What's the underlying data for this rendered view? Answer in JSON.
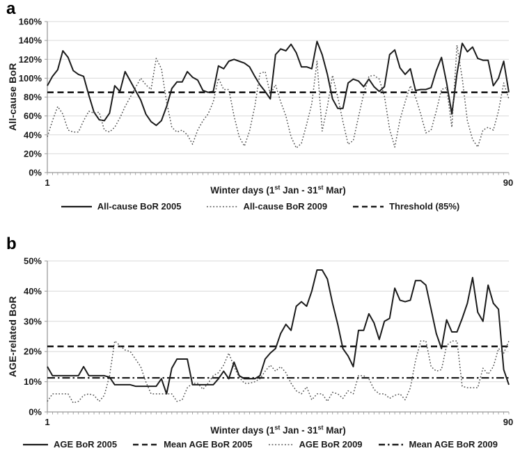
{
  "panels": [
    {
      "letter": "a",
      "ylabel": "All-cause BoR",
      "xlabel_parts": {
        "pre": "Winter days (1",
        "sup1": "st",
        "mid": " Jan - 31",
        "sup2": "st",
        "post": " Mar)"
      }
    },
    {
      "letter": "b",
      "ylabel": "AGE-related BoR",
      "xlabel_parts": {
        "pre": "Winter days (1",
        "sup1": "st",
        "mid": " Jan - 31",
        "sup2": "st",
        "post": " Mar)"
      }
    }
  ],
  "colors": {
    "line": "#1a1a1a",
    "dotted_line": "#4d4d4d",
    "gridline": "#d9d9d9",
    "axis": "#9a9a9a"
  },
  "chart_data": [
    {
      "type": "line",
      "title": "",
      "xlabel": "Winter days (1st Jan - 31st Mar)",
      "ylabel": "All-cause BoR",
      "x_range": [
        1,
        90
      ],
      "ylim": [
        0,
        160
      ],
      "grid": true,
      "legend_position": "bottom",
      "yticks": [
        "0%",
        "20%",
        "40%",
        "60%",
        "80%",
        "100%",
        "120%",
        "140%",
        "160%"
      ],
      "xticks": [
        "1",
        "90"
      ],
      "series": [
        {
          "name": "All-cause BoR 2005",
          "style": "solid",
          "values": [
            92,
            102,
            109,
            129,
            122,
            108,
            104,
            102,
            82,
            64,
            56,
            55,
            63,
            92,
            86,
            107,
            97,
            87,
            77,
            62,
            54,
            50,
            55,
            70,
            89,
            96,
            96,
            107,
            101,
            98,
            87,
            85,
            86,
            113,
            110,
            118,
            120,
            118,
            116,
            112,
            102,
            93,
            86,
            78,
            125,
            131,
            129,
            136,
            127,
            112,
            112,
            110,
            139,
            125,
            104,
            78,
            68,
            68,
            95,
            99,
            97,
            91,
            99,
            91,
            86,
            91,
            125,
            130,
            111,
            104,
            110,
            87,
            88,
            88,
            90,
            108,
            122,
            95,
            62,
            105,
            137,
            128,
            133,
            121,
            119,
            119,
            92,
            100,
            118,
            85
          ]
        },
        {
          "name": "All-cause BoR 2009",
          "style": "dotted",
          "values": [
            38,
            55,
            70,
            62,
            45,
            43,
            43,
            55,
            65,
            63,
            64,
            45,
            43,
            48,
            58,
            70,
            80,
            90,
            100,
            93,
            88,
            121,
            110,
            75,
            48,
            43,
            45,
            40,
            30,
            45,
            55,
            62,
            75,
            100,
            88,
            88,
            60,
            38,
            28,
            44,
            70,
            105,
            107,
            83,
            93,
            75,
            60,
            38,
            26,
            31,
            51,
            73,
            118,
            44,
            70,
            103,
            80,
            54,
            30,
            34,
            59,
            83,
            102,
            103,
            99,
            81,
            46,
            27,
            56,
            75,
            92,
            80,
            62,
            42,
            45,
            65,
            88,
            90,
            48,
            135,
            100,
            55,
            35,
            27,
            45,
            48,
            45,
            65,
            95,
            78
          ]
        },
        {
          "name": "Threshold (85%)",
          "style": "dashed",
          "constant": 85
        }
      ]
    },
    {
      "type": "line",
      "title": "",
      "xlabel": "Winter days (1st Jan - 31st Mar)",
      "ylabel": "AGE-related BoR",
      "x_range": [
        1,
        90
      ],
      "ylim": [
        0,
        50
      ],
      "grid": true,
      "legend_position": "bottom",
      "yticks": [
        "0%",
        "10%",
        "20%",
        "30%",
        "40%",
        "50%"
      ],
      "xticks": [
        "1",
        "90"
      ],
      "series": [
        {
          "name": "AGE BoR 2005",
          "style": "solid",
          "values": [
            15,
            12,
            12,
            12,
            12,
            12,
            12,
            15,
            12,
            12,
            12,
            12,
            11.5,
            9,
            9,
            9,
            9,
            8.5,
            8.5,
            8.5,
            8.5,
            8.5,
            11,
            6,
            14.5,
            17.5,
            17.5,
            17.5,
            9,
            9,
            9,
            9,
            9,
            11,
            13.5,
            11,
            16.5,
            12,
            11,
            11,
            11,
            12,
            17.5,
            19.5,
            21,
            26,
            29,
            27,
            35,
            36.5,
            35,
            40,
            47,
            47,
            44,
            36,
            29,
            21,
            18.5,
            15,
            27,
            27,
            32.5,
            29.5,
            24,
            30,
            31,
            41,
            37,
            36.5,
            37,
            43.5,
            43.5,
            42,
            34,
            26,
            21,
            30.5,
            26.5,
            26.5,
            31,
            36,
            44.5,
            33,
            30,
            42,
            36,
            34,
            14,
            9
          ]
        },
        {
          "name": "Mean AGE BoR 2005",
          "style": "dashed",
          "constant": 21.7
        },
        {
          "name": "AGE BoR 2009",
          "style": "dotted",
          "values": [
            3.5,
            6,
            6,
            6,
            6,
            3,
            3.5,
            5.5,
            6,
            5.5,
            3.5,
            5.5,
            12,
            23.5,
            22,
            20.5,
            20,
            17.5,
            15,
            10,
            6,
            6,
            6,
            6,
            6,
            3.5,
            4,
            8,
            9.5,
            9.5,
            7.5,
            9.5,
            12,
            13,
            15.5,
            19.5,
            15,
            11.5,
            9.5,
            9.5,
            10,
            11,
            13.5,
            15.5,
            13.5,
            15,
            13,
            9.5,
            7,
            6,
            8.3,
            4,
            6,
            6,
            3.5,
            6.5,
            6,
            4.5,
            7,
            6,
            12,
            12,
            11,
            7.5,
            6,
            6,
            4.5,
            5.5,
            6,
            4,
            8,
            17,
            23.5,
            23.5,
            15,
            13.5,
            14,
            22,
            23.5,
            23.5,
            8.5,
            8,
            8,
            8,
            14.5,
            12.5,
            15,
            21,
            19.5,
            23.5
          ]
        },
        {
          "name": "Mean AGE BoR 2009",
          "style": "dashdot",
          "constant": 11.3
        }
      ]
    }
  ]
}
